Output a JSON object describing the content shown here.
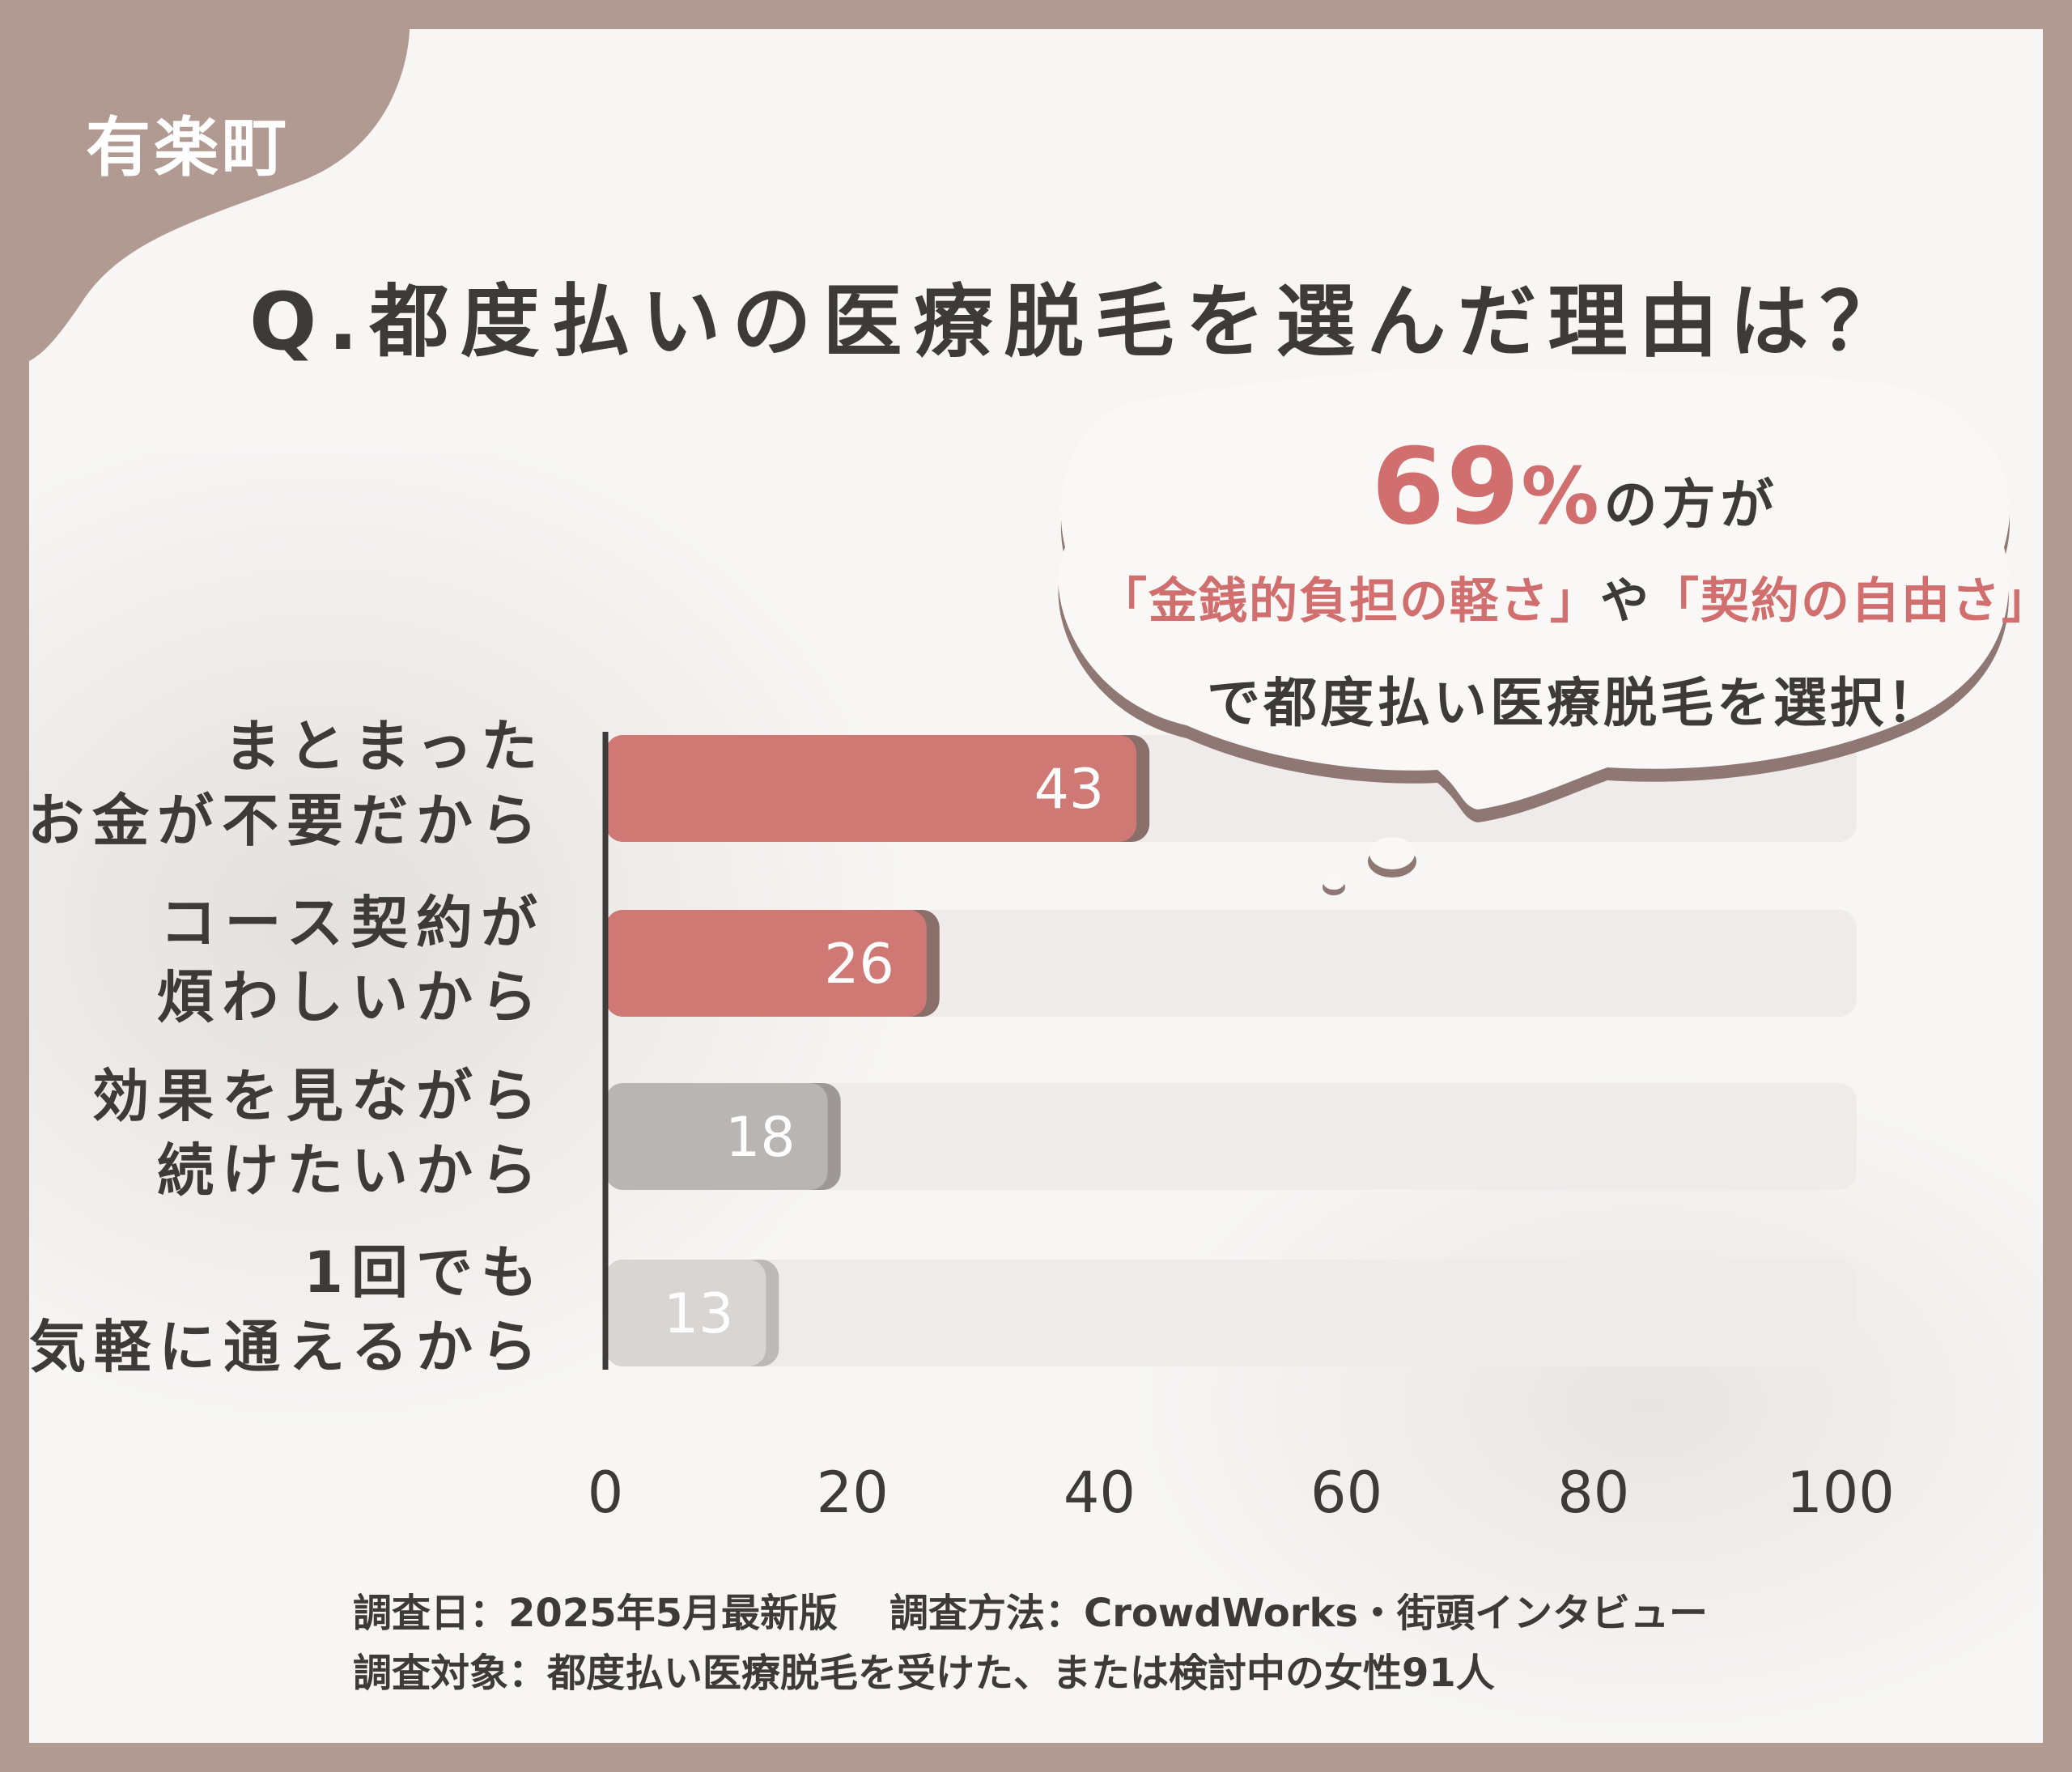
{
  "location": "有楽町",
  "title": "Q.都度払いの医療脱毛を選んだ理由は？",
  "callout": {
    "percent_number": "69",
    "percent_sign": "%",
    "line1_rest": "の方が",
    "bracket1": "「金銭的負担の軽さ」",
    "connector": "や",
    "bracket2": "「契約の自由さ」",
    "line3": "で都度払い医療脱毛を選択！"
  },
  "chart_data": {
    "type": "bar",
    "orientation": "horizontal",
    "categories": [
      [
        "まとまった",
        "お金が不要だから"
      ],
      [
        "コース契約が",
        "煩わしいから"
      ],
      [
        "効果を見ながら",
        "続けたいから"
      ],
      [
        "1回でも",
        "気軽に通えるから"
      ]
    ],
    "values": [
      43,
      26,
      18,
      13
    ],
    "xlim": [
      0,
      100
    ],
    "xticks": [
      "0",
      "20",
      "40",
      "60",
      "80",
      "100"
    ],
    "bar_colors": [
      "#d07874",
      "#d07874",
      "#b9b5b3",
      "#d8d5d3"
    ],
    "bar_shadow_colors": [
      "#8a6e69",
      "#8a6e69",
      "#9d9896",
      "#bdb9b7"
    ],
    "track_color": "#eeebea"
  },
  "footer": {
    "line1_a": "調査日：2025年5月最新版",
    "line1_b": "調査方法：CrowdWorks・街頭インタビュー",
    "line2": "調査対象：都度払い医療脱毛を受けた、または検討中の女性91人"
  }
}
